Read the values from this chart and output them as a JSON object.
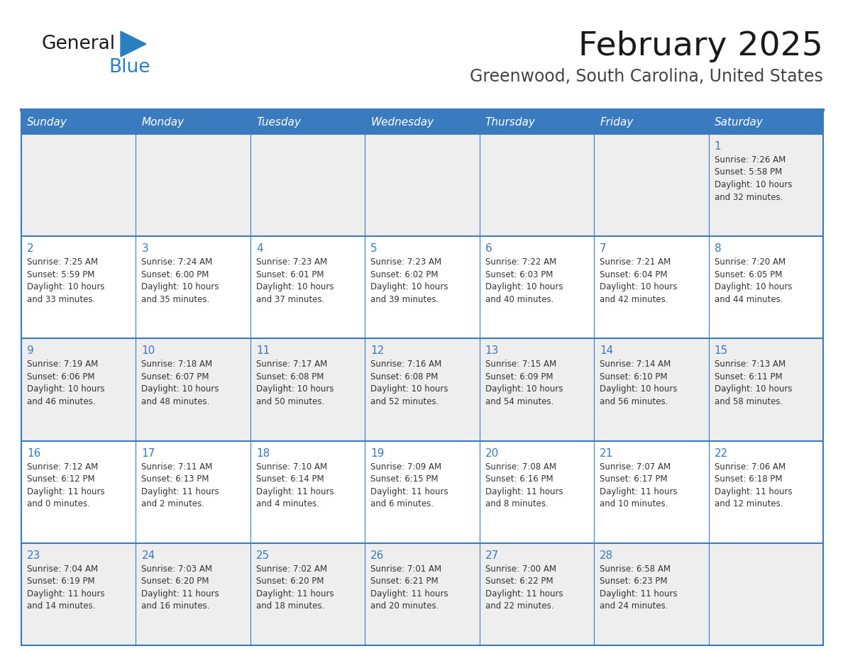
{
  "title": "February 2025",
  "subtitle": "Greenwood, South Carolina, United States",
  "header_bg": "#3a7bbf",
  "header_text_color": "#ffffff",
  "days_of_week": [
    "Sunday",
    "Monday",
    "Tuesday",
    "Wednesday",
    "Thursday",
    "Friday",
    "Saturday"
  ],
  "row_bg": [
    "#eeeeee",
    "#ffffff",
    "#eeeeee",
    "#ffffff",
    "#eeeeee"
  ],
  "cell_border_color": "#3a7bbf",
  "day_number_color": "#3a7bbf",
  "info_text_color": "#333333",
  "title_color": "#1a1a1a",
  "subtitle_color": "#444444",
  "logo_general_color": "#1a1a1a",
  "logo_blue_color": "#2a7fc0",
  "logo_triangle_color": "#2a7fc0",
  "calendar_data": [
    [
      null,
      null,
      null,
      null,
      null,
      null,
      {
        "day": 1,
        "sunrise": "7:26 AM",
        "sunset": "5:58 PM",
        "daylight": "10 hours and 32 minutes."
      }
    ],
    [
      {
        "day": 2,
        "sunrise": "7:25 AM",
        "sunset": "5:59 PM",
        "daylight": "10 hours and 33 minutes."
      },
      {
        "day": 3,
        "sunrise": "7:24 AM",
        "sunset": "6:00 PM",
        "daylight": "10 hours and 35 minutes."
      },
      {
        "day": 4,
        "sunrise": "7:23 AM",
        "sunset": "6:01 PM",
        "daylight": "10 hours and 37 minutes."
      },
      {
        "day": 5,
        "sunrise": "7:23 AM",
        "sunset": "6:02 PM",
        "daylight": "10 hours and 39 minutes."
      },
      {
        "day": 6,
        "sunrise": "7:22 AM",
        "sunset": "6:03 PM",
        "daylight": "10 hours and 40 minutes."
      },
      {
        "day": 7,
        "sunrise": "7:21 AM",
        "sunset": "6:04 PM",
        "daylight": "10 hours and 42 minutes."
      },
      {
        "day": 8,
        "sunrise": "7:20 AM",
        "sunset": "6:05 PM",
        "daylight": "10 hours and 44 minutes."
      }
    ],
    [
      {
        "day": 9,
        "sunrise": "7:19 AM",
        "sunset": "6:06 PM",
        "daylight": "10 hours and 46 minutes."
      },
      {
        "day": 10,
        "sunrise": "7:18 AM",
        "sunset": "6:07 PM",
        "daylight": "10 hours and 48 minutes."
      },
      {
        "day": 11,
        "sunrise": "7:17 AM",
        "sunset": "6:08 PM",
        "daylight": "10 hours and 50 minutes."
      },
      {
        "day": 12,
        "sunrise": "7:16 AM",
        "sunset": "6:08 PM",
        "daylight": "10 hours and 52 minutes."
      },
      {
        "day": 13,
        "sunrise": "7:15 AM",
        "sunset": "6:09 PM",
        "daylight": "10 hours and 54 minutes."
      },
      {
        "day": 14,
        "sunrise": "7:14 AM",
        "sunset": "6:10 PM",
        "daylight": "10 hours and 56 minutes."
      },
      {
        "day": 15,
        "sunrise": "7:13 AM",
        "sunset": "6:11 PM",
        "daylight": "10 hours and 58 minutes."
      }
    ],
    [
      {
        "day": 16,
        "sunrise": "7:12 AM",
        "sunset": "6:12 PM",
        "daylight": "11 hours and 0 minutes."
      },
      {
        "day": 17,
        "sunrise": "7:11 AM",
        "sunset": "6:13 PM",
        "daylight": "11 hours and 2 minutes."
      },
      {
        "day": 18,
        "sunrise": "7:10 AM",
        "sunset": "6:14 PM",
        "daylight": "11 hours and 4 minutes."
      },
      {
        "day": 19,
        "sunrise": "7:09 AM",
        "sunset": "6:15 PM",
        "daylight": "11 hours and 6 minutes."
      },
      {
        "day": 20,
        "sunrise": "7:08 AM",
        "sunset": "6:16 PM",
        "daylight": "11 hours and 8 minutes."
      },
      {
        "day": 21,
        "sunrise": "7:07 AM",
        "sunset": "6:17 PM",
        "daylight": "11 hours and 10 minutes."
      },
      {
        "day": 22,
        "sunrise": "7:06 AM",
        "sunset": "6:18 PM",
        "daylight": "11 hours and 12 minutes."
      }
    ],
    [
      {
        "day": 23,
        "sunrise": "7:04 AM",
        "sunset": "6:19 PM",
        "daylight": "11 hours and 14 minutes."
      },
      {
        "day": 24,
        "sunrise": "7:03 AM",
        "sunset": "6:20 PM",
        "daylight": "11 hours and 16 minutes."
      },
      {
        "day": 25,
        "sunrise": "7:02 AM",
        "sunset": "6:20 PM",
        "daylight": "11 hours and 18 minutes."
      },
      {
        "day": 26,
        "sunrise": "7:01 AM",
        "sunset": "6:21 PM",
        "daylight": "11 hours and 20 minutes."
      },
      {
        "day": 27,
        "sunrise": "7:00 AM",
        "sunset": "6:22 PM",
        "daylight": "11 hours and 22 minutes."
      },
      {
        "day": 28,
        "sunrise": "6:58 AM",
        "sunset": "6:23 PM",
        "daylight": "11 hours and 24 minutes."
      },
      null
    ]
  ]
}
